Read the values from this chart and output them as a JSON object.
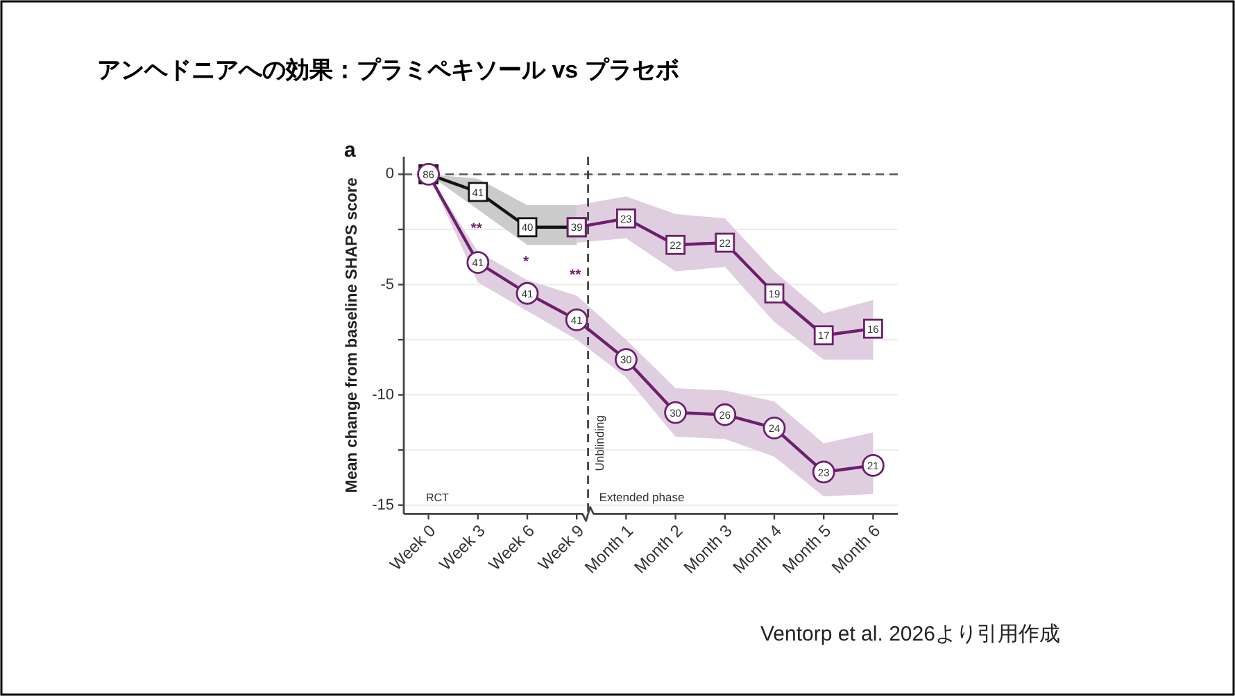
{
  "chart_data": {
    "type": "line",
    "title": "アンヘドニアへの効果：プラミペキソール vs プラセボ",
    "ylabel": "Mean change from baseline SHAPS score",
    "categories": [
      "Week 0",
      "Week 3",
      "Week 6",
      "Week 9",
      "Month 1",
      "Month 2",
      "Month 3",
      "Month 4",
      "Month 5",
      "Month 6"
    ],
    "series": [
      {
        "color": "#141414",
        "marker": "square",
        "values": [
          0,
          -0.8,
          -2.4,
          -2.4,
          null,
          null,
          null,
          null,
          null,
          null
        ],
        "lower": [
          0,
          -1.6,
          -3.2,
          -3.2,
          null,
          null,
          null,
          null,
          null,
          null
        ],
        "upper": [
          0,
          -0.2,
          -1.4,
          -1.4,
          null,
          null,
          null,
          null,
          null,
          null
        ]
      },
      {
        "color": "#6d1f6e",
        "marker": "square",
        "values": [
          null,
          null,
          null,
          -2.4,
          -2.0,
          -3.2,
          -3.1,
          -5.4,
          -7.3,
          -7.0
        ],
        "lower": [
          null,
          null,
          null,
          -3.1,
          -2.9,
          -4.4,
          -4.2,
          -6.7,
          -8.4,
          -8.4
        ],
        "upper": [
          null,
          null,
          null,
          -1.4,
          -1.0,
          -1.8,
          -2.0,
          -4.4,
          -6.3,
          -5.7
        ]
      },
      {
        "color": "#6d1f6e",
        "marker": "circle",
        "values": [
          0,
          -4.0,
          -5.4,
          -6.6,
          -8.4,
          -10.8,
          -10.9,
          -11.5,
          -13.5,
          -13.2
        ],
        "lower": [
          0,
          -4.9,
          -6.2,
          -7.5,
          -9.2,
          -11.9,
          -12.0,
          -12.8,
          -14.6,
          -14.5
        ],
        "upper": [
          0,
          -3.5,
          -4.8,
          -5.5,
          -7.5,
          -9.7,
          -9.8,
          -10.3,
          -12.2,
          -11.7
        ]
      }
    ],
    "ylim": [
      -15.4,
      0.8
    ],
    "yticks": [
      0,
      {
        "value": -2.5,
        "label": null
      },
      -5,
      {
        "value": -7.5,
        "label": null
      },
      -10,
      {
        "value": -12.5,
        "label": null
      },
      -15
    ],
    "grid": "y",
    "line_style": "solid",
    "ref_lines": [
      {
        "axis": "y",
        "value": 0,
        "line_style": "dashed",
        "color": "#555555"
      }
    ],
    "annotations": [
      "a",
      "**",
      "*",
      "**",
      "RCT",
      "Unblinding",
      "Extended phase",
      "Ventorp et al. 2026より引用作成",
      {
        "text": "86",
        "x": "Week 0",
        "y": 0
      },
      {
        "text": "41",
        "x": "Week 3",
        "y": -0.8
      },
      {
        "text": "40",
        "x": "Week 6",
        "y": -2.4
      },
      {
        "text": "39",
        "x": "Week 9",
        "y": -2.4
      },
      {
        "text": "23",
        "x": "Month 1",
        "y": -2.0
      },
      {
        "text": "22",
        "x": "Month 2",
        "y": -3.2
      },
      {
        "text": "22",
        "x": "Month 3",
        "y": -3.1
      },
      {
        "text": "19",
        "x": "Month 4",
        "y": -5.4
      },
      {
        "text": "17",
        "x": "Month 5",
        "y": -7.3
      },
      {
        "text": "16",
        "x": "Month 6",
        "y": -7.0
      },
      {
        "text": "41",
        "x": "Week 3",
        "y": -4.0
      },
      {
        "text": "41",
        "x": "Week 6",
        "y": -5.4
      },
      {
        "text": "41",
        "x": "Week 9",
        "y": -6.6
      },
      {
        "text": "30",
        "x": "Month 1",
        "y": -8.4
      },
      {
        "text": "30",
        "x": "Month 2",
        "y": -10.8
      },
      {
        "text": "26",
        "x": "Month 3",
        "y": -10.9
      },
      {
        "text": "24",
        "x": "Month 4",
        "y": -11.5
      },
      {
        "text": "23",
        "x": "Month 5",
        "y": -13.5
      },
      {
        "text": "21",
        "x": "Month 6",
        "y": -13.2
      }
    ]
  }
}
